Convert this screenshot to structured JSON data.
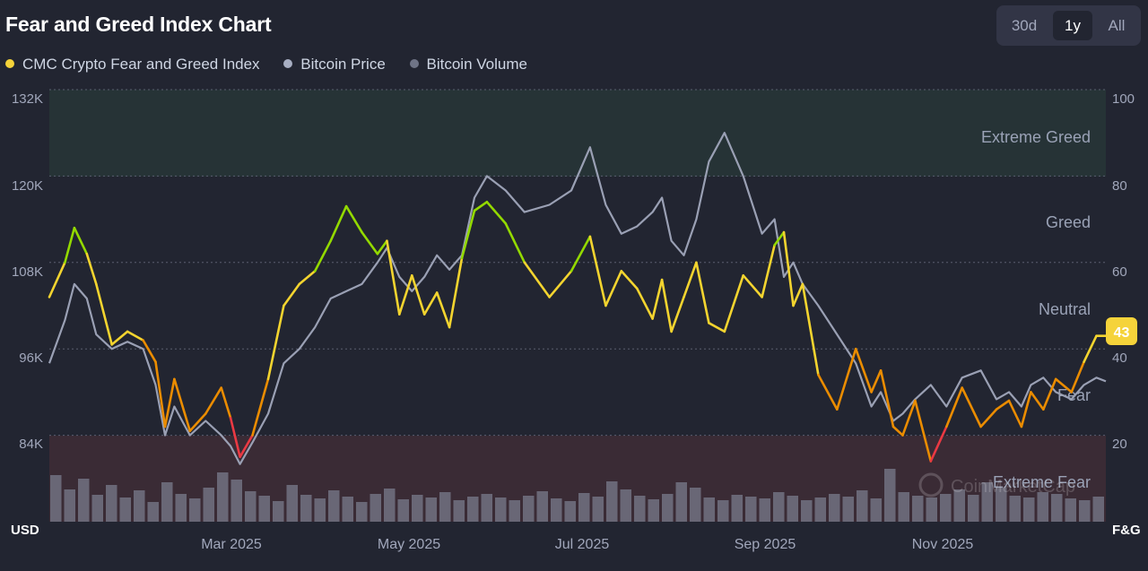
{
  "header": {
    "title": "Fear and Greed Index Chart",
    "ranges": [
      "30d",
      "1y",
      "All"
    ],
    "active_range": "1y"
  },
  "legend": [
    {
      "label": "CMC Crypto Fear and Greed Index",
      "color": "#f5d33a"
    },
    {
      "label": "Bitcoin Price",
      "color": "#a7aec2"
    },
    {
      "label": "Bitcoin Volume",
      "color": "#6f7486"
    }
  ],
  "axes": {
    "left_unit": "USD",
    "right_unit": "F&G",
    "left_ticks": [
      "132K",
      "120K",
      "108K",
      "96K",
      "84K"
    ],
    "right_ticks": [
      "100",
      "80",
      "60",
      "40",
      "20"
    ],
    "x_ticks": [
      "Mar 2025",
      "May 2025",
      "Jul 2025",
      "Sep 2025",
      "Nov 2025"
    ]
  },
  "zones": {
    "extreme_greed": "Extreme Greed",
    "greed": "Greed",
    "neutral": "Neutral",
    "fear": "Fear",
    "extreme_fear": "Extreme Fear"
  },
  "current_value": "43",
  "watermark": "CoinMarketCap",
  "colors": {
    "extreme_fear": "#ea3943",
    "fear": "#ea8c00",
    "neutral": "#f3d42f",
    "greed": "#93d900",
    "volume": "#7a7c8c",
    "price": "#9aa0b4"
  },
  "chart_data": {
    "type": "line",
    "title": "Fear and Greed Index Chart",
    "x_range": [
      "2025-01-01",
      "2025-12-04"
    ],
    "y_left": {
      "label": "USD",
      "min": 72000,
      "max": 132000
    },
    "y_right": {
      "label": "F&G",
      "min": 0,
      "max": 100
    },
    "series": [
      {
        "name": "CMC Crypto Fear and Greed Index",
        "axis": "right",
        "x_days": [
          0,
          5,
          8,
          12,
          15,
          20,
          25,
          30,
          34,
          37,
          40,
          45,
          50,
          55,
          58,
          61,
          65,
          70,
          75,
          80,
          85,
          90,
          95,
          100,
          105,
          108,
          112,
          116,
          120,
          124,
          128,
          132,
          136,
          140,
          146,
          152,
          160,
          167,
          173,
          178,
          183,
          188,
          193,
          196,
          199,
          203,
          207,
          211,
          216,
          222,
          228,
          232,
          235,
          238,
          241,
          246,
          252,
          258,
          263,
          266,
          270,
          273,
          277,
          282,
          287,
          292,
          298,
          303,
          307,
          311,
          314,
          318,
          322,
          327,
          331,
          335,
          338
        ],
        "values": [
          52,
          60,
          68,
          62,
          55,
          41,
          44,
          42,
          37,
          22,
          33,
          21,
          25,
          31,
          24,
          15,
          20,
          33,
          50,
          55,
          58,
          65,
          73,
          67,
          62,
          65,
          48,
          57,
          48,
          53,
          45,
          61,
          72,
          74,
          69,
          60,
          52,
          58,
          66,
          50,
          58,
          54,
          47,
          56,
          44,
          52,
          60,
          46,
          44,
          57,
          52,
          64,
          67,
          50,
          55,
          34,
          26,
          40,
          30,
          35,
          22,
          20,
          28,
          14,
          22,
          31,
          22,
          26,
          28,
          22,
          30,
          26,
          33,
          30,
          37,
          43,
          43
        ]
      },
      {
        "name": "Bitcoin Price",
        "axis": "left",
        "x_days": [
          0,
          5,
          8,
          12,
          15,
          20,
          25,
          30,
          34,
          37,
          40,
          45,
          50,
          55,
          58,
          61,
          65,
          70,
          75,
          80,
          85,
          90,
          95,
          100,
          105,
          108,
          112,
          116,
          120,
          124,
          128,
          132,
          136,
          140,
          146,
          152,
          160,
          167,
          173,
          178,
          183,
          188,
          193,
          196,
          199,
          203,
          207,
          211,
          216,
          222,
          228,
          232,
          235,
          238,
          241,
          246,
          252,
          258,
          263,
          266,
          270,
          273,
          277,
          282,
          287,
          292,
          298,
          303,
          307,
          311,
          314,
          318,
          322,
          327,
          331,
          335,
          338
        ],
        "values": [
          94000,
          100000,
          105000,
          103000,
          98000,
          96000,
          97000,
          96000,
          91000,
          84000,
          88000,
          84000,
          86000,
          84000,
          82500,
          80000,
          83000,
          87000,
          94000,
          96000,
          99000,
          103000,
          104000,
          105000,
          108000,
          110000,
          106000,
          104000,
          106000,
          109000,
          107000,
          109000,
          117000,
          120000,
          118000,
          115000,
          116000,
          118000,
          124000,
          116000,
          112000,
          113000,
          115000,
          117000,
          111000,
          109000,
          114000,
          122000,
          126000,
          120000,
          112000,
          114000,
          106000,
          108000,
          105000,
          102000,
          98000,
          94000,
          88000,
          90000,
          86000,
          87000,
          89000,
          91000,
          88000,
          92000,
          93000,
          89000,
          90000,
          88000,
          91000,
          92000,
          90000,
          89000,
          91000,
          92000,
          91500
        ]
      },
      {
        "name": "Bitcoin Volume",
        "axis": "hidden",
        "values": [
          52,
          36,
          48,
          30,
          41,
          27,
          35,
          22,
          44,
          31,
          26,
          38,
          55,
          47,
          34,
          29,
          23,
          41,
          30,
          26,
          35,
          28,
          22,
          31,
          37,
          25,
          30,
          27,
          33,
          24,
          28,
          31,
          27,
          24,
          29,
          34,
          26,
          23,
          32,
          28,
          45,
          36,
          29,
          25,
          31,
          44,
          38,
          27,
          24,
          30,
          28,
          26,
          33,
          29,
          24,
          27,
          31,
          28,
          35,
          26,
          59,
          33,
          29,
          27,
          31,
          36,
          30,
          44,
          38,
          29,
          27,
          33,
          31,
          26,
          24,
          28
        ]
      }
    ],
    "zones": [
      {
        "label": "Extreme Greed",
        "from": 80,
        "to": 100
      },
      {
        "label": "Greed",
        "from": 60,
        "to": 80
      },
      {
        "label": "Neutral",
        "from": 40,
        "to": 60
      },
      {
        "label": "Fear",
        "from": 20,
        "to": 40
      },
      {
        "label": "Extreme Fear",
        "from": 0,
        "to": 20
      }
    ],
    "last_value": 43
  }
}
